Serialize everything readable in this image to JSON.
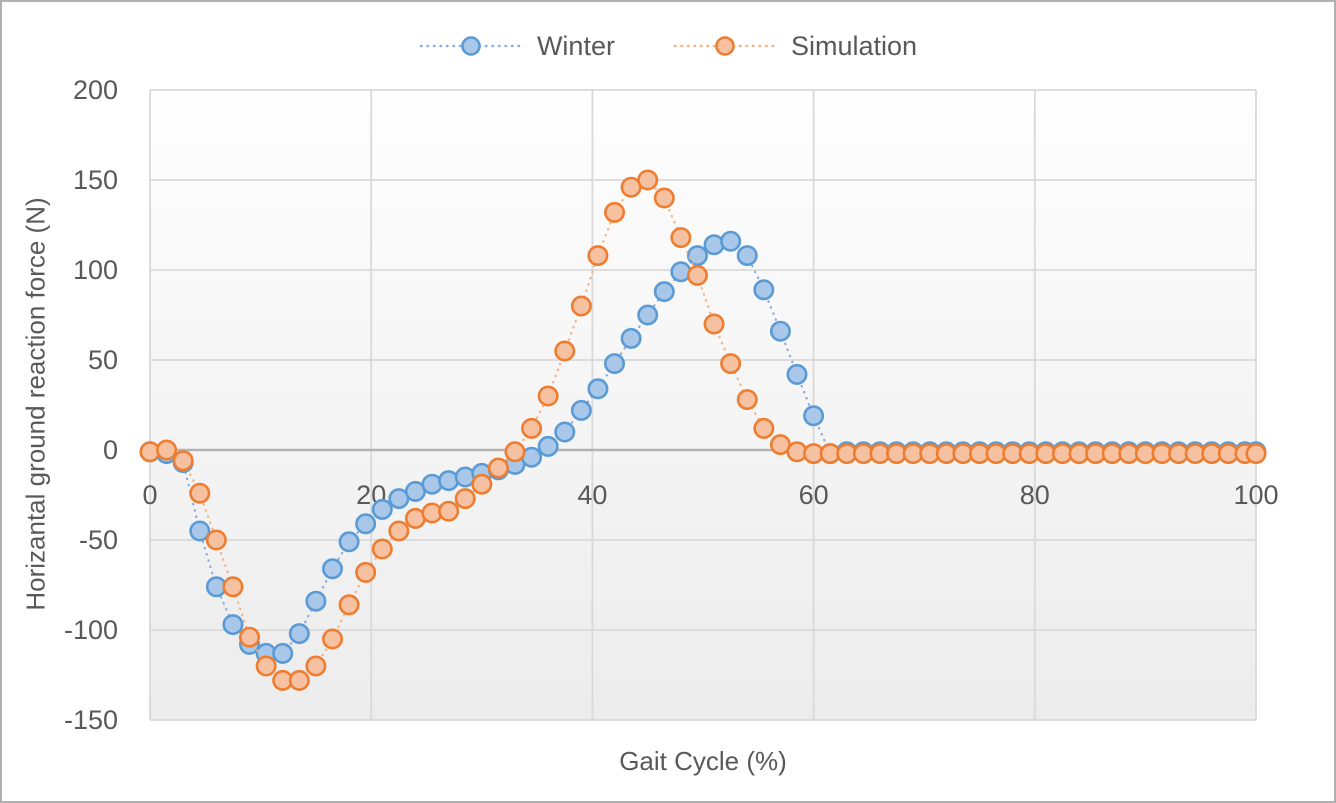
{
  "chart_data": {
    "type": "line",
    "subtype": "dotted-line-with-circle-markers",
    "title": "",
    "xlabel": "Gait Cycle (%)",
    "ylabel": "Horizantal ground reaction force (N)",
    "xlim": [
      0,
      100
    ],
    "ylim": [
      -150,
      200
    ],
    "x_ticks": [
      0,
      20,
      40,
      60,
      80,
      100
    ],
    "y_ticks": [
      200,
      150,
      100,
      50,
      0,
      -50,
      -100,
      -150
    ],
    "grid": "on",
    "legend_position": "top-center",
    "plot_bg_gradient_top": "#fefefe",
    "plot_bg_gradient_bottom": "#ececec",
    "gridline_color": "#d9d9d9",
    "zero_axis_color": "#b3b3b3",
    "text_color": "#595959",
    "x": [
      0,
      1.5,
      3,
      4.5,
      6,
      7.5,
      9,
      10.5,
      12,
      13.5,
      15,
      16.5,
      18,
      19.5,
      21,
      22.5,
      24,
      25.5,
      27,
      28.5,
      30,
      31.5,
      33,
      34.5,
      36,
      37.5,
      39,
      40.5,
      42,
      43.5,
      45,
      46.5,
      48,
      49.5,
      51,
      52.5,
      54,
      55.5,
      57,
      58.5,
      60,
      61.5,
      63,
      64.5,
      66,
      67.5,
      69,
      70.5,
      72,
      73.5,
      75,
      76.5,
      78,
      79.5,
      81,
      82.5,
      84,
      85.5,
      87,
      88.5,
      90,
      91.5,
      93,
      94.5,
      96,
      97.5,
      99,
      100
    ],
    "series": [
      {
        "name": "Winter",
        "marker_fill": "#a9c7e9",
        "marker_stroke": "#5b9bd5",
        "line_color": "#8faadc",
        "values": [
          -1,
          -2,
          -7,
          -45,
          -76,
          -97,
          -108,
          -113,
          -113,
          -102,
          -84,
          -66,
          -51,
          -41,
          -33,
          -27,
          -23,
          -19,
          -17,
          -15,
          -13,
          -11,
          -8,
          -4,
          2,
          10,
          22,
          34,
          48,
          62,
          75,
          88,
          99,
          108,
          114,
          116,
          108,
          89,
          66,
          42,
          19,
          -2,
          -1,
          -1,
          -1,
          -1,
          -1,
          -1,
          -1,
          -1,
          -1,
          -1,
          -1,
          -1,
          -1,
          -1,
          -1,
          -1,
          -1,
          -1,
          -1,
          -1,
          -1,
          -1,
          -1,
          -1,
          -1,
          -1
        ]
      },
      {
        "name": "Simulation",
        "marker_fill": "#f6c1a0",
        "marker_stroke": "#ed7d31",
        "line_color": "#f4b183",
        "values": [
          -1,
          0,
          -6,
          -24,
          -50,
          -76,
          -104,
          -120,
          -128,
          -128,
          -120,
          -105,
          -86,
          -68,
          -55,
          -45,
          -38,
          -35,
          -34,
          -27,
          -19,
          -10,
          -1,
          12,
          30,
          55,
          80,
          108,
          132,
          146,
          150,
          140,
          118,
          97,
          70,
          48,
          28,
          12,
          3,
          -1,
          -2,
          -2,
          -2,
          -2,
          -2,
          -2,
          -2,
          -2,
          -2,
          -2,
          -2,
          -2,
          -2,
          -2,
          -2,
          -2,
          -2,
          -2,
          -2,
          -2,
          -2,
          -2,
          -2,
          -2,
          -2,
          -2,
          -2,
          -2
        ]
      }
    ]
  },
  "legend": {
    "items": [
      {
        "label": "Winter"
      },
      {
        "label": "Simulation"
      }
    ]
  }
}
